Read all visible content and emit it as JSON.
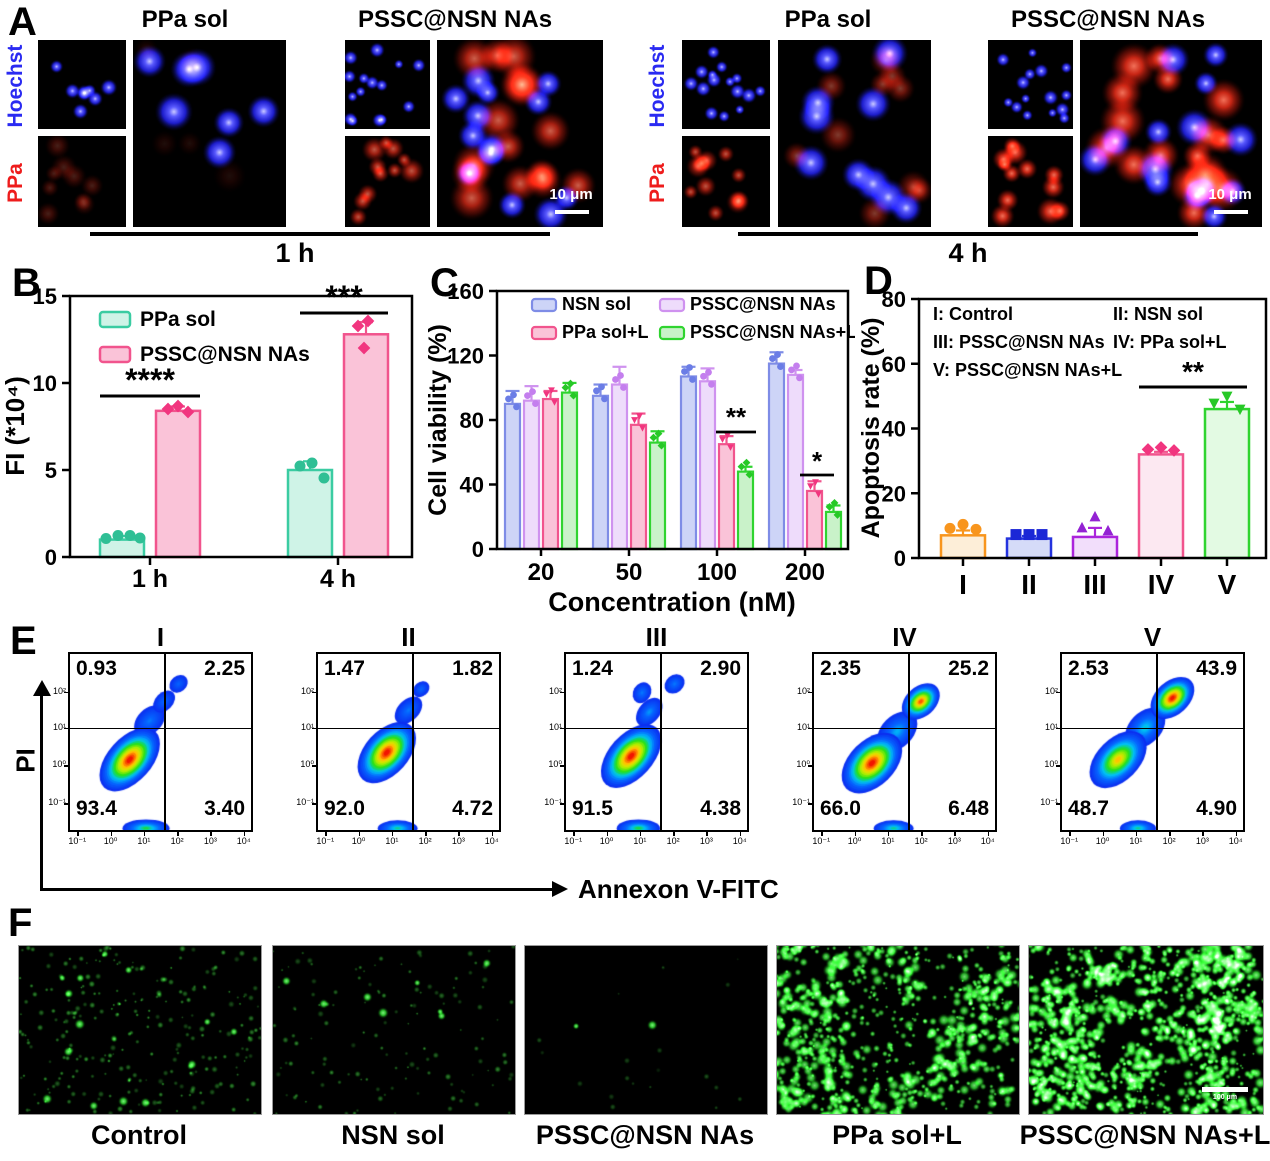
{
  "colors": {
    "mint": "#3acca2",
    "mint_fill": "#cff3e7",
    "mint_dot": "#2fbf95",
    "pink": "#f1548d",
    "pink_fill": "#fac3d8",
    "pink_fill_light": "#fce8f1",
    "pink_dot": "#f1357f",
    "blue": "#7e8ce6",
    "blue_fill": "#cdd4f7",
    "blue_dot": "#6b7de6",
    "lavender": "#cf92ef",
    "lavender_fill": "#eedcfb",
    "lavender_dot": "#c47fee",
    "green": "#2fd42f",
    "green_fill": "#c9f2c9",
    "green_fill_light": "#e3fae3",
    "green_dot": "#27c827",
    "orange": "#f8951d",
    "orange_fill": "#fdeed8",
    "deep_blue": "#2433de",
    "deep_blue_fill": "#d5dbf8",
    "deep_blue_dot": "#1b27d6",
    "purple": "#ab24dc",
    "purple_fill": "#f2defb",
    "purple_dot": "#9322d3",
    "hoechst_blue": "#2a2af2",
    "ppa_red": "#ee1c1c"
  },
  "panelA": {
    "label": "A",
    "row_labels": [
      "Hoechst",
      "PPa"
    ],
    "groups": [
      {
        "time_label": "1 h",
        "col_titles": [
          "PPa sol",
          "PSSC@NSN NAs"
        ],
        "scale_bar": "10 μm"
      },
      {
        "time_label": "4 h",
        "col_titles": [
          "PPa sol",
          "PSSC@NSN NAs"
        ],
        "scale_bar": "10 μm"
      }
    ]
  },
  "panelB": {
    "label": "B",
    "chart_data": {
      "type": "bar",
      "ylabel": "FI (*10⁴)",
      "ylim": [
        0,
        15
      ],
      "yticks": [
        0,
        5,
        10,
        15
      ],
      "categories": [
        "1 h",
        "4 h"
      ],
      "series": [
        {
          "name": "PPa sol",
          "values": [
            1.0,
            5.0
          ],
          "errors": [
            0.2,
            0.5
          ]
        },
        {
          "name": "PSSC@NSN NAs",
          "values": [
            8.4,
            12.8
          ],
          "errors": [
            0.25,
            0.7
          ]
        }
      ],
      "significance": [
        {
          "category": "1 h",
          "label": "****"
        },
        {
          "category": "4 h",
          "label": "***"
        }
      ],
      "legend_position": "top-left"
    }
  },
  "panelC": {
    "label": "C",
    "chart_data": {
      "type": "bar",
      "ylabel": "Cell viability (%)",
      "xlabel": "Concentration (nM)",
      "ylim": [
        0,
        160
      ],
      "yticks": [
        0,
        40,
        80,
        120,
        160
      ],
      "categories": [
        "20",
        "50",
        "100",
        "200"
      ],
      "series": [
        {
          "name": "NSN sol",
          "values": [
            90,
            95,
            107,
            115
          ],
          "errors": [
            8,
            7,
            6,
            7
          ]
        },
        {
          "name": "PSSC@NSN NAs",
          "values": [
            92,
            102,
            104,
            108
          ],
          "errors": [
            9,
            11,
            8,
            3
          ]
        },
        {
          "name": "PPa sol+L",
          "values": [
            93,
            77,
            65,
            36
          ],
          "errors": [
            5,
            7,
            5,
            6
          ]
        },
        {
          "name": "PSSC@NSN NAs+L",
          "values": [
            97,
            66,
            48,
            23
          ],
          "errors": [
            6,
            7,
            3,
            4
          ]
        }
      ],
      "significance": [
        {
          "category": "100",
          "label": "**"
        },
        {
          "category": "200",
          "label": "*"
        }
      ],
      "legend_position": "top"
    }
  },
  "panelD": {
    "label": "D",
    "chart_data": {
      "type": "bar",
      "ylabel": "Apoptosis rate (%)",
      "ylim": [
        0,
        80
      ],
      "yticks": [
        0,
        20,
        40,
        60,
        80
      ],
      "categories": [
        "I",
        "II",
        "III",
        "IV",
        "V"
      ],
      "values": [
        7,
        6,
        6.5,
        32,
        46
      ],
      "errors": [
        1.5,
        0.8,
        2.8,
        0.8,
        2.2
      ],
      "legend_lines": [
        "I: Control",
        "II: NSN sol",
        "III: PSSC@NSN NAs",
        "IV: PPa sol+L",
        "V: PSSC@NSN NAs+L"
      ],
      "significance": [
        {
          "between": [
            "IV",
            "V"
          ],
          "label": "**"
        }
      ]
    }
  },
  "panelE": {
    "label": "E",
    "ylabel": "PI",
    "xlabel": "Annexon V-FITC",
    "x_ticks": [
      "10⁻¹",
      "10⁰",
      "10¹",
      "10²",
      "10³",
      "10⁴"
    ],
    "y_ticks": [
      "10²",
      "10¹",
      "10⁰",
      "10⁻¹"
    ],
    "plots": [
      {
        "title": "I",
        "ul": "0.93",
        "ur": "2.25",
        "ll": "93.4",
        "lr": "3.40"
      },
      {
        "title": "II",
        "ul": "1.47",
        "ur": "1.82",
        "ll": "92.0",
        "lr": "4.72"
      },
      {
        "title": "III",
        "ul": "1.24",
        "ur": "2.90",
        "ll": "91.5",
        "lr": "4.38"
      },
      {
        "title": "IV",
        "ul": "2.35",
        "ur": "25.2",
        "ll": "66.0",
        "lr": "6.48"
      },
      {
        "title": "V",
        "ul": "2.53",
        "ur": "43.9",
        "ll": "48.7",
        "lr": "4.90"
      }
    ]
  },
  "panelF": {
    "label": "F",
    "images": [
      {
        "label": "Control"
      },
      {
        "label": "NSN sol"
      },
      {
        "label": "PSSC@NSN NAs"
      },
      {
        "label": "PPa sol+L"
      },
      {
        "label": "PSSC@NSN NAs+L",
        "scale_bar": "100 μm"
      }
    ]
  }
}
